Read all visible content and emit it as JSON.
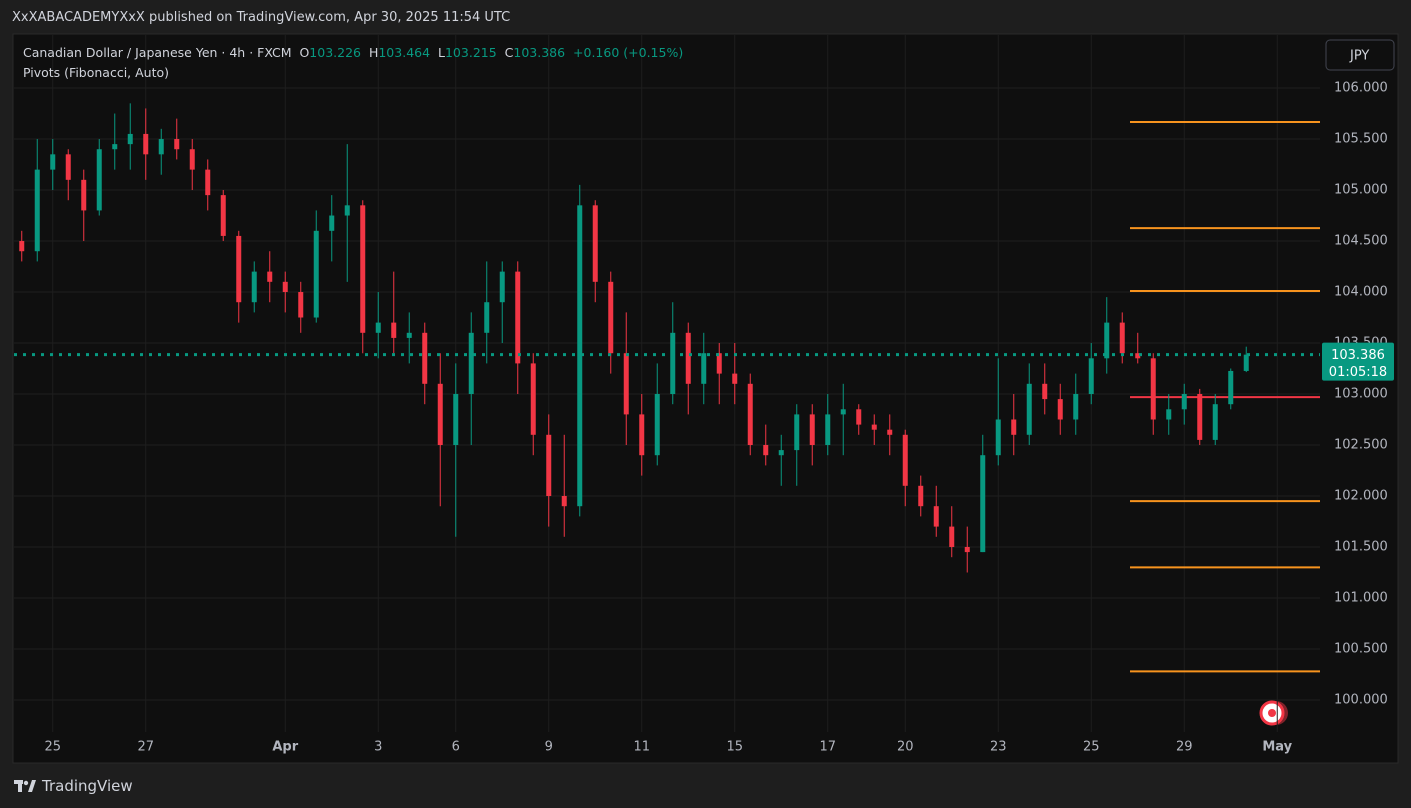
{
  "header": {
    "publisher": "XxXABACADEMYXxX published on TradingView.com, Apr 30, 2025 11:54 UTC"
  },
  "footer": {
    "brand": "TradingView"
  },
  "chart_data": {
    "type": "candlestick",
    "title": "Canadian Dollar / Japanese Yen · 4h · FXCM",
    "indicator": "Pivots (Fibonacci, Auto)",
    "currency": "JPY",
    "ohlc_labels": [
      "O",
      "103.226",
      "H",
      "103.464",
      "L",
      "103.215",
      "C",
      "103.386",
      "+0.160 (+0.15%)"
    ],
    "countdown": "01:05:18",
    "up_color": "#089981",
    "down_color": "#f23645",
    "categories": [
      null,
      null,
      "25",
      null,
      null,
      null,
      null,
      null,
      "27",
      null,
      null,
      null,
      null,
      null,
      null,
      null,
      null,
      "Apr",
      null,
      null,
      null,
      null,
      null,
      "3",
      null,
      null,
      null,
      null,
      "6",
      null,
      null,
      null,
      null,
      null,
      "9",
      null,
      null,
      null,
      null,
      null,
      "11",
      null,
      null,
      null,
      null,
      null,
      "15",
      null,
      null,
      null,
      null,
      null,
      "17",
      null,
      null,
      null,
      null,
      "20",
      null,
      null,
      null,
      null,
      null,
      "23",
      null,
      null,
      null,
      null,
      null,
      "25",
      null,
      null,
      null,
      null,
      null,
      "29",
      null,
      null,
      null,
      null,
      null,
      "May",
      null
    ],
    "open": [
      104.5,
      104.4,
      105.2,
      105.35,
      105.1,
      104.8,
      105.4,
      105.45,
      105.55,
      105.35,
      105.5,
      105.4,
      105.2,
      104.95,
      104.55,
      103.9,
      104.2,
      104.1,
      104.0,
      103.75,
      104.6,
      104.75,
      104.85,
      103.6,
      103.7,
      103.55,
      103.6,
      103.1,
      102.5,
      103.0,
      103.6,
      103.9,
      104.2,
      103.3,
      102.6,
      102.0,
      101.9,
      104.85,
      104.1,
      103.4,
      102.8,
      102.4,
      103.0,
      103.6,
      103.1,
      103.4,
      103.2,
      103.1,
      102.5,
      102.4,
      102.45,
      102.8,
      102.5,
      102.8,
      102.85,
      102.7,
      102.65,
      102.6,
      102.1,
      101.9,
      101.7,
      101.5,
      101.45,
      102.4,
      102.75,
      102.6,
      103.1,
      102.95,
      102.75,
      103.0,
      103.35,
      103.7,
      103.4,
      103.35,
      102.75,
      102.85,
      103.0,
      102.55,
      102.9,
      103.226,
      null,
      null,
      null
    ],
    "high": [
      104.6,
      105.5,
      105.5,
      105.4,
      105.2,
      105.5,
      105.75,
      105.85,
      105.8,
      105.6,
      105.7,
      105.5,
      105.3,
      105.0,
      104.6,
      104.3,
      104.4,
      104.2,
      104.1,
      104.8,
      104.95,
      105.45,
      104.9,
      104.0,
      104.2,
      103.8,
      103.7,
      103.4,
      103.3,
      103.8,
      104.3,
      104.3,
      104.3,
      103.4,
      102.8,
      102.6,
      105.05,
      104.9,
      104.2,
      103.8,
      103.0,
      103.3,
      103.9,
      103.7,
      103.6,
      103.5,
      103.5,
      103.2,
      102.7,
      102.6,
      102.9,
      102.9,
      103.0,
      103.1,
      102.9,
      102.8,
      102.8,
      102.65,
      102.2,
      102.1,
      101.9,
      101.7,
      102.6,
      103.35,
      103.0,
      103.3,
      103.3,
      103.1,
      103.2,
      103.5,
      103.95,
      103.8,
      103.6,
      103.4,
      103.0,
      103.1,
      103.05,
      103.0,
      103.25,
      103.464,
      null,
      null,
      null
    ],
    "low": [
      104.3,
      104.3,
      105.0,
      104.9,
      104.5,
      104.75,
      105.2,
      105.2,
      105.1,
      105.15,
      105.3,
      105.0,
      104.8,
      104.5,
      103.7,
      103.8,
      103.9,
      103.8,
      103.6,
      103.7,
      104.3,
      104.1,
      103.4,
      103.35,
      103.4,
      103.3,
      102.9,
      101.9,
      101.6,
      102.5,
      103.3,
      103.5,
      103.0,
      102.4,
      101.7,
      101.6,
      101.8,
      103.9,
      103.2,
      102.5,
      102.2,
      102.3,
      102.9,
      102.8,
      102.9,
      102.9,
      102.9,
      102.4,
      102.3,
      102.1,
      102.1,
      102.3,
      102.4,
      102.4,
      102.6,
      102.5,
      102.4,
      101.9,
      101.8,
      101.6,
      101.4,
      101.25,
      101.45,
      102.3,
      102.4,
      102.5,
      102.8,
      102.6,
      102.6,
      102.9,
      103.2,
      103.3,
      103.3,
      102.6,
      102.6,
      102.7,
      102.5,
      102.5,
      102.85,
      103.215,
      null,
      null,
      null
    ],
    "close": [
      104.4,
      105.2,
      105.35,
      105.1,
      104.8,
      105.4,
      105.45,
      105.55,
      105.35,
      105.5,
      105.4,
      105.2,
      104.95,
      104.55,
      103.9,
      104.2,
      104.1,
      104.0,
      103.75,
      104.6,
      104.75,
      104.85,
      103.6,
      103.7,
      103.55,
      103.6,
      103.1,
      102.5,
      103.0,
      103.6,
      103.9,
      104.2,
      103.3,
      102.6,
      102.0,
      101.9,
      104.85,
      104.1,
      103.4,
      102.8,
      102.4,
      103.0,
      103.6,
      103.1,
      103.4,
      103.2,
      103.1,
      102.5,
      102.4,
      102.45,
      102.8,
      102.5,
      102.8,
      102.85,
      102.7,
      102.65,
      102.6,
      102.1,
      101.9,
      101.7,
      101.5,
      101.45,
      102.4,
      102.75,
      102.6,
      103.1,
      102.95,
      102.75,
      103.0,
      103.35,
      103.7,
      103.4,
      103.35,
      102.75,
      102.85,
      103.0,
      102.55,
      102.9,
      103.226,
      103.386,
      null,
      null,
      null
    ],
    "pivot_levels": [
      105.667,
      104.627,
      104.01,
      102.97,
      101.95,
      101.3,
      100.28
    ],
    "pivot_colors": [
      "#f7931e",
      "#f7931e",
      "#f7931e",
      "#f23645",
      "#f7931e",
      "#f7931e",
      "#f7931e"
    ],
    "ylim": [
      99.686,
      106.52
    ],
    "yticks": [
      {
        "value": 100,
        "label": "100.000"
      },
      {
        "value": 100.5,
        "label": "100.500"
      },
      {
        "value": 101,
        "label": "101.000"
      },
      {
        "value": 101.5,
        "label": "101.500"
      },
      {
        "value": 102,
        "label": "102.000"
      },
      {
        "value": 102.5,
        "label": "102.500"
      },
      {
        "value": 103,
        "label": "103.000"
      },
      {
        "value": 103.5,
        "label": "103.500"
      },
      {
        "value": 104,
        "label": "104.000"
      },
      {
        "value": 104.5,
        "label": "104.500"
      },
      {
        "value": 105,
        "label": "105.000"
      },
      {
        "value": 105.5,
        "label": "105.500"
      },
      {
        "value": 106,
        "label": "106.000"
      }
    ],
    "grid": true
  }
}
